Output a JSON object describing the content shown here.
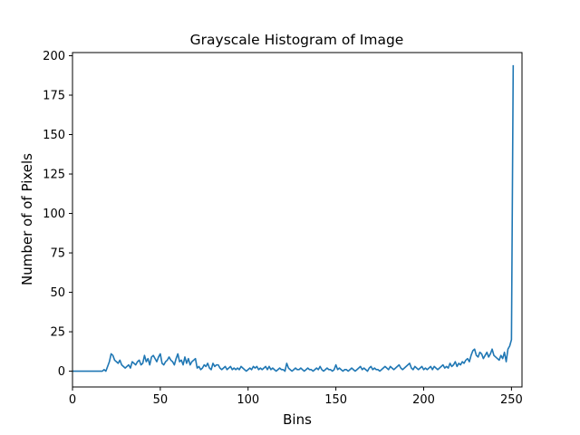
{
  "chart_data": {
    "type": "line",
    "title": "Grayscale Histogram of Image",
    "xlabel": "Bins",
    "ylabel": "Number of of Pixels",
    "xlim": [
      0,
      256
    ],
    "ylim": [
      -10,
      202
    ],
    "xticks": [
      0,
      50,
      100,
      150,
      200,
      250
    ],
    "yticks": [
      0,
      25,
      50,
      75,
      100,
      125,
      150,
      175,
      200
    ],
    "grid": false,
    "line_color": "#1f77b4",
    "series": [
      {
        "values": [
          0,
          0,
          0,
          0,
          0,
          0,
          0,
          0,
          0,
          0,
          0,
          0,
          0,
          0,
          0,
          0,
          0,
          0,
          1,
          0,
          3,
          6,
          11,
          10,
          7,
          6,
          5,
          7,
          4,
          3,
          2,
          3,
          4,
          2,
          6,
          5,
          4,
          6,
          7,
          4,
          5,
          10,
          6,
          8,
          4,
          9,
          10,
          8,
          6,
          9,
          11,
          5,
          4,
          6,
          7,
          9,
          7,
          6,
          4,
          8,
          11,
          6,
          7,
          4,
          9,
          5,
          8,
          4,
          6,
          7,
          8,
          2,
          3,
          1,
          2,
          4,
          3,
          5,
          2,
          1,
          5,
          3,
          4,
          4,
          2,
          1,
          2,
          3,
          1,
          2,
          3,
          1,
          2,
          1,
          2,
          1,
          3,
          2,
          1,
          0,
          1,
          2,
          1,
          3,
          2,
          3,
          1,
          2,
          1,
          2,
          3,
          1,
          3,
          1,
          2,
          1,
          0,
          1,
          2,
          1,
          1,
          0,
          5,
          2,
          1,
          0,
          1,
          2,
          1,
          1,
          2,
          1,
          0,
          1,
          2,
          1,
          1,
          0,
          1,
          2,
          1,
          3,
          1,
          0,
          1,
          2,
          1,
          1,
          0,
          1,
          4,
          1,
          2,
          1,
          0,
          1,
          1,
          0,
          1,
          2,
          1,
          0,
          1,
          2,
          3,
          1,
          2,
          1,
          0,
          2,
          3,
          1,
          2,
          1,
          1,
          0,
          1,
          2,
          3,
          2,
          1,
          3,
          2,
          1,
          2,
          3,
          4,
          2,
          1,
          2,
          3,
          4,
          5,
          2,
          1,
          3,
          2,
          1,
          2,
          3,
          1,
          2,
          1,
          2,
          3,
          1,
          3,
          2,
          1,
          2,
          3,
          4,
          2,
          3,
          2,
          5,
          3,
          4,
          6,
          3,
          5,
          4,
          6,
          5,
          7,
          8,
          6,
          10,
          13,
          14,
          10,
          9,
          12,
          11,
          8,
          10,
          12,
          9,
          11,
          14,
          10,
          9,
          8,
          7,
          10,
          8,
          12,
          6,
          14,
          16,
          20,
          194
        ]
      }
    ]
  }
}
